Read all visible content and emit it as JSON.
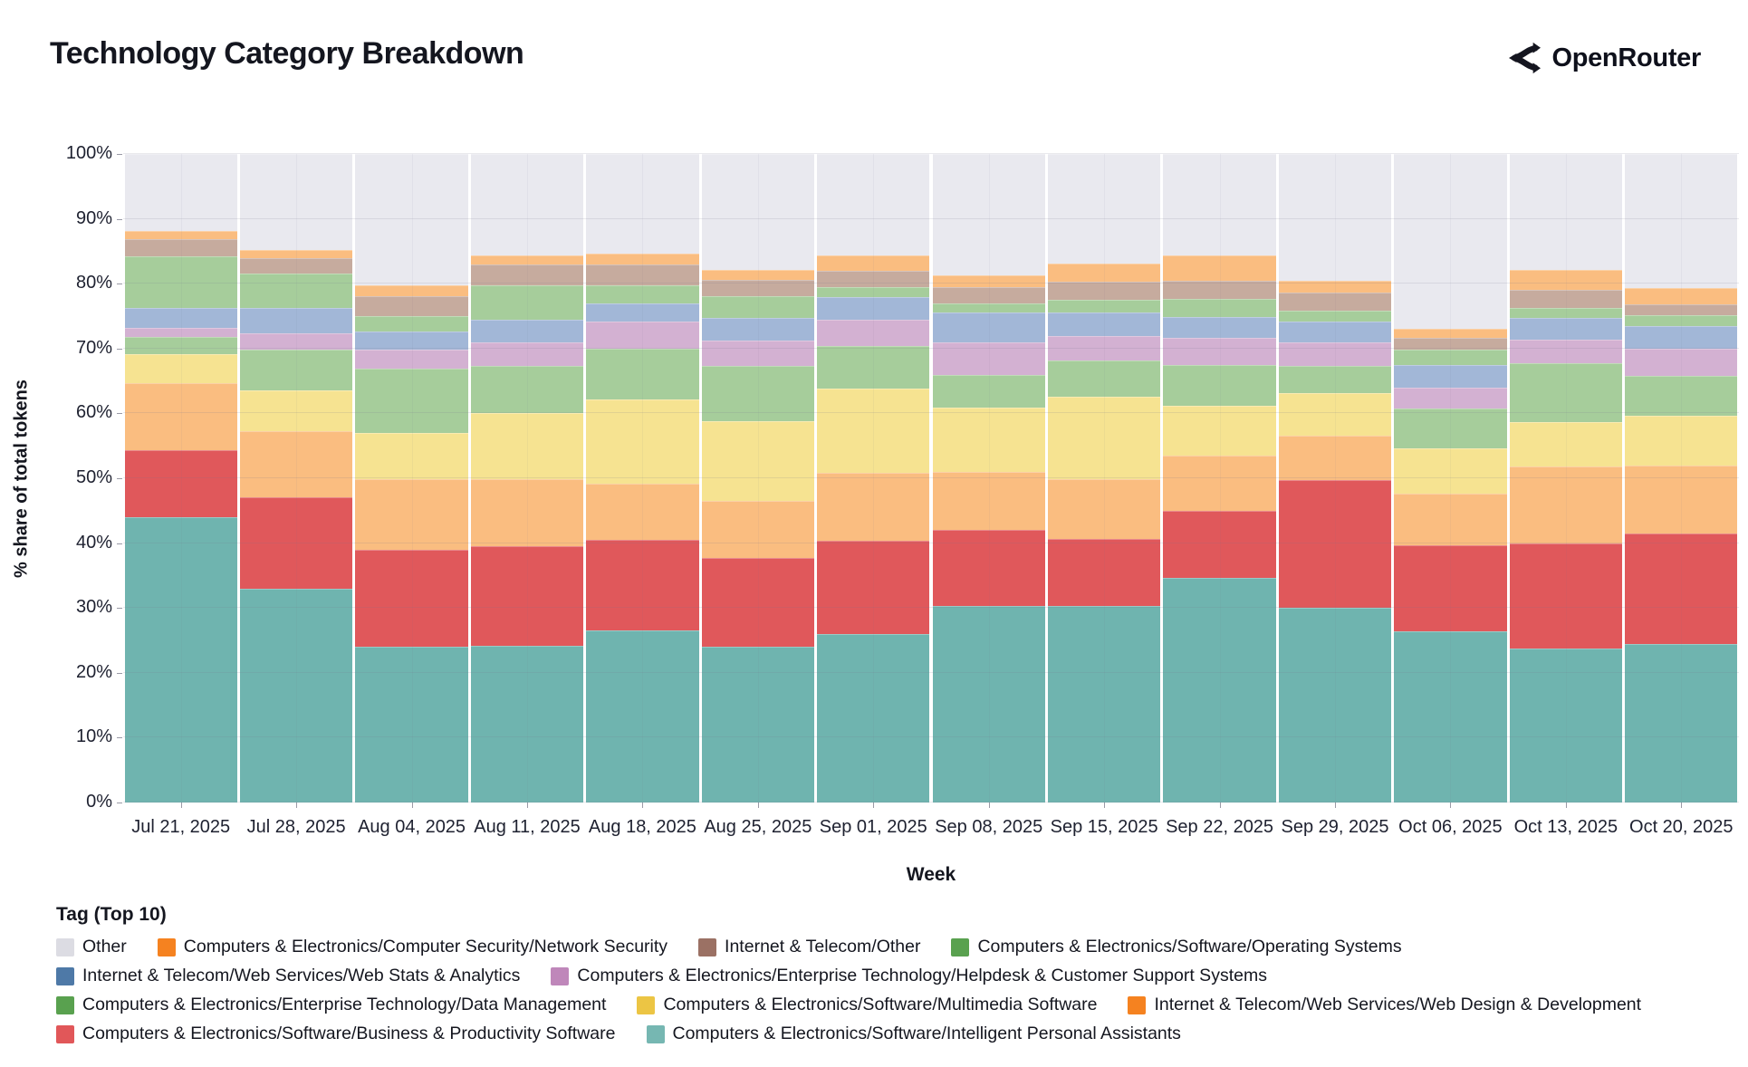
{
  "header": {
    "title": "Technology Category Breakdown",
    "brand": "OpenRouter"
  },
  "chart_data": {
    "type": "bar",
    "stacked": true,
    "grid": true,
    "legend_position": "bottom",
    "legend_title": "Tag (Top 10)",
    "xlabel": "Week",
    "ylabel": "% share of total tokens",
    "ylim": [
      0,
      100
    ],
    "ytick_labels": [
      "0%",
      "10%",
      "20%",
      "30%",
      "40%",
      "50%",
      "60%",
      "70%",
      "80%",
      "90%",
      "100%"
    ],
    "categories": [
      "Jul 21, 2025",
      "Jul 28, 2025",
      "Aug 04, 2025",
      "Aug 11, 2025",
      "Aug 18, 2025",
      "Aug 25, 2025",
      "Sep 01, 2025",
      "Sep 08, 2025",
      "Sep 15, 2025",
      "Sep 22, 2025",
      "Sep 29, 2025",
      "Oct 06, 2025",
      "Oct 13, 2025",
      "Oct 20, 2025"
    ],
    "series": [
      {
        "name": "Computers & Electronics/Software/Intelligent Personal Assistants",
        "bar_color": "#6fb4af",
        "swatch_color": "#76b7b2",
        "pattern": "none",
        "values": [
          44.0,
          32.9,
          24.0,
          24.1,
          26.6,
          24.0,
          26.0,
          30.3,
          30.3,
          34.6,
          30.0,
          26.4,
          23.7,
          24.5
        ]
      },
      {
        "name": "Computers & Electronics/Software/Business & Productivity Software",
        "bar_color": "#e0585b",
        "swatch_color": "#e15759",
        "pattern": "none",
        "values": [
          10.4,
          14.2,
          15.0,
          15.4,
          13.9,
          13.7,
          14.4,
          11.8,
          10.4,
          10.4,
          19.7,
          13.2,
          16.2,
          17.0
        ]
      },
      {
        "name": "Internet & Telecom/Web Services/Web Design & Development",
        "bar_color": "#fabd80",
        "swatch_color": "#f58220",
        "pattern": "none",
        "values": [
          10.2,
          10.1,
          10.8,
          10.3,
          8.7,
          8.8,
          10.4,
          8.9,
          9.1,
          8.5,
          6.9,
          8.0,
          11.9,
          10.5
        ]
      },
      {
        "name": "Computers & Electronics/Software/Multimedia Software",
        "bar_color": "#f6e391",
        "swatch_color": "#ecc544",
        "pattern": "none",
        "values": [
          4.6,
          6.3,
          7.2,
          10.2,
          13.0,
          12.3,
          13.0,
          9.9,
          12.8,
          7.7,
          6.5,
          7.0,
          6.8,
          7.7
        ]
      },
      {
        "name": "Computers & Electronics/Enterprise Technology/Data Management",
        "bar_color": "#a6cd9b",
        "swatch_color": "#59a14f",
        "pattern": "none",
        "values": [
          2.6,
          6.3,
          9.9,
          7.3,
          7.8,
          8.5,
          6.6,
          5.0,
          5.6,
          6.2,
          4.2,
          6.1,
          9.1,
          6.1
        ]
      },
      {
        "name": "Computers & Electronics/Enterprise Technology/Helpdesk & Customer Support Systems",
        "bar_color": "#d3b1d2",
        "swatch_color": "#bf87ba",
        "pattern": "dots2",
        "values": [
          1.4,
          2.6,
          2.9,
          3.7,
          4.2,
          3.9,
          4.1,
          5.1,
          3.7,
          4.2,
          3.7,
          3.3,
          3.7,
          4.2
        ]
      },
      {
        "name": "Internet & Telecom/Web Services/Web Stats & Analytics",
        "bar_color": "#a2b7d7",
        "swatch_color": "#4e79a7",
        "pattern": "none",
        "values": [
          3.0,
          3.8,
          2.8,
          3.5,
          2.8,
          3.5,
          3.5,
          4.5,
          3.6,
          3.2,
          3.2,
          3.5,
          3.3,
          3.4
        ]
      },
      {
        "name": "Computers & Electronics/Software/Operating Systems",
        "bar_color": "#a6cd9b",
        "swatch_color": "#59a14f",
        "pattern": "none",
        "values": [
          8.0,
          5.4,
          2.4,
          5.2,
          2.7,
          3.4,
          1.5,
          1.5,
          2.0,
          2.8,
          1.7,
          2.3,
          1.6,
          1.7
        ]
      },
      {
        "name": "Internet & Telecom/Other",
        "bar_color": "#c6ab9e",
        "swatch_color": "#9b7164",
        "pattern": "dots",
        "values": [
          2.7,
          2.4,
          3.1,
          3.2,
          3.2,
          2.5,
          2.5,
          2.5,
          2.8,
          2.8,
          2.7,
          1.8,
          2.8,
          1.7
        ]
      },
      {
        "name": "Computers & Electronics/Computer Security/Network Security",
        "bar_color": "#fabd80",
        "swatch_color": "#f58220",
        "pattern": "none",
        "values": [
          1.2,
          1.2,
          1.7,
          1.4,
          1.7,
          1.5,
          2.3,
          1.8,
          2.8,
          3.9,
          1.9,
          1.5,
          3.0,
          2.5
        ]
      },
      {
        "name": "Other",
        "bar_color": "#e9e9ef",
        "swatch_color": "#dcdce3",
        "pattern": "none",
        "values": [
          11.9,
          14.8,
          20.2,
          15.7,
          15.4,
          17.9,
          15.7,
          18.7,
          16.9,
          15.7,
          19.5,
          26.9,
          17.9,
          20.7
        ]
      }
    ],
    "legend_rows": [
      [
        10,
        9,
        8,
        7
      ],
      [
        6,
        5
      ],
      [
        4,
        3,
        2
      ],
      [
        1,
        0
      ]
    ]
  }
}
